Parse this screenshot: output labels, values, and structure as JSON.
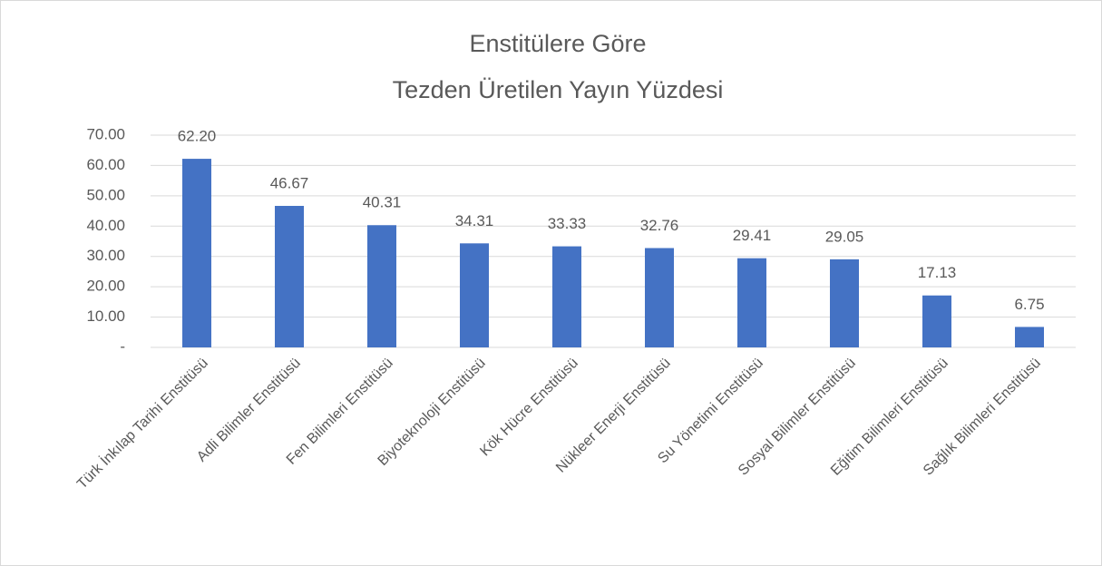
{
  "chart_data": {
    "type": "bar",
    "title": [
      "Enstitülere Göre",
      "Tezden Üretilen Yayın Yüzdesi"
    ],
    "categories": [
      "Türk İnkılap Tarihi Enstitüsü",
      "Adli Bilimler Enstitüsü",
      "Fen Bilimleri Enstitüsü",
      "Biyoteknoloji Enstitüsü",
      "Kök Hücre Enstitüsü",
      "Nükleer Enerji Enstitüsü",
      "Su Yönetimi Enstitüsü",
      "Sosyal Bilimler Enstitüsü",
      "Eğitim Bilimleri Enstitüsü",
      "Sağlık Bilimleri Enstitüsü"
    ],
    "values": [
      62.2,
      46.67,
      40.31,
      34.31,
      33.33,
      32.76,
      29.41,
      29.05,
      17.13,
      6.75
    ],
    "value_labels": [
      "62.20",
      "46.67",
      "40.31",
      "34.31",
      "33.33",
      "32.76",
      "29.41",
      "29.05",
      "17.13",
      "6.75"
    ],
    "color": "#4472c4",
    "ylim": [
      0,
      70
    ],
    "yticks": [
      {
        "value": 0,
        "label": "-"
      },
      {
        "value": 10,
        "label": "10.00"
      },
      {
        "value": 20,
        "label": "20.00"
      },
      {
        "value": 30,
        "label": "30.00"
      },
      {
        "value": 40,
        "label": "40.00"
      },
      {
        "value": 50,
        "label": "50.00"
      },
      {
        "value": 60,
        "label": "60.00"
      },
      {
        "value": 70,
        "label": "70.00"
      }
    ],
    "grid": true
  }
}
